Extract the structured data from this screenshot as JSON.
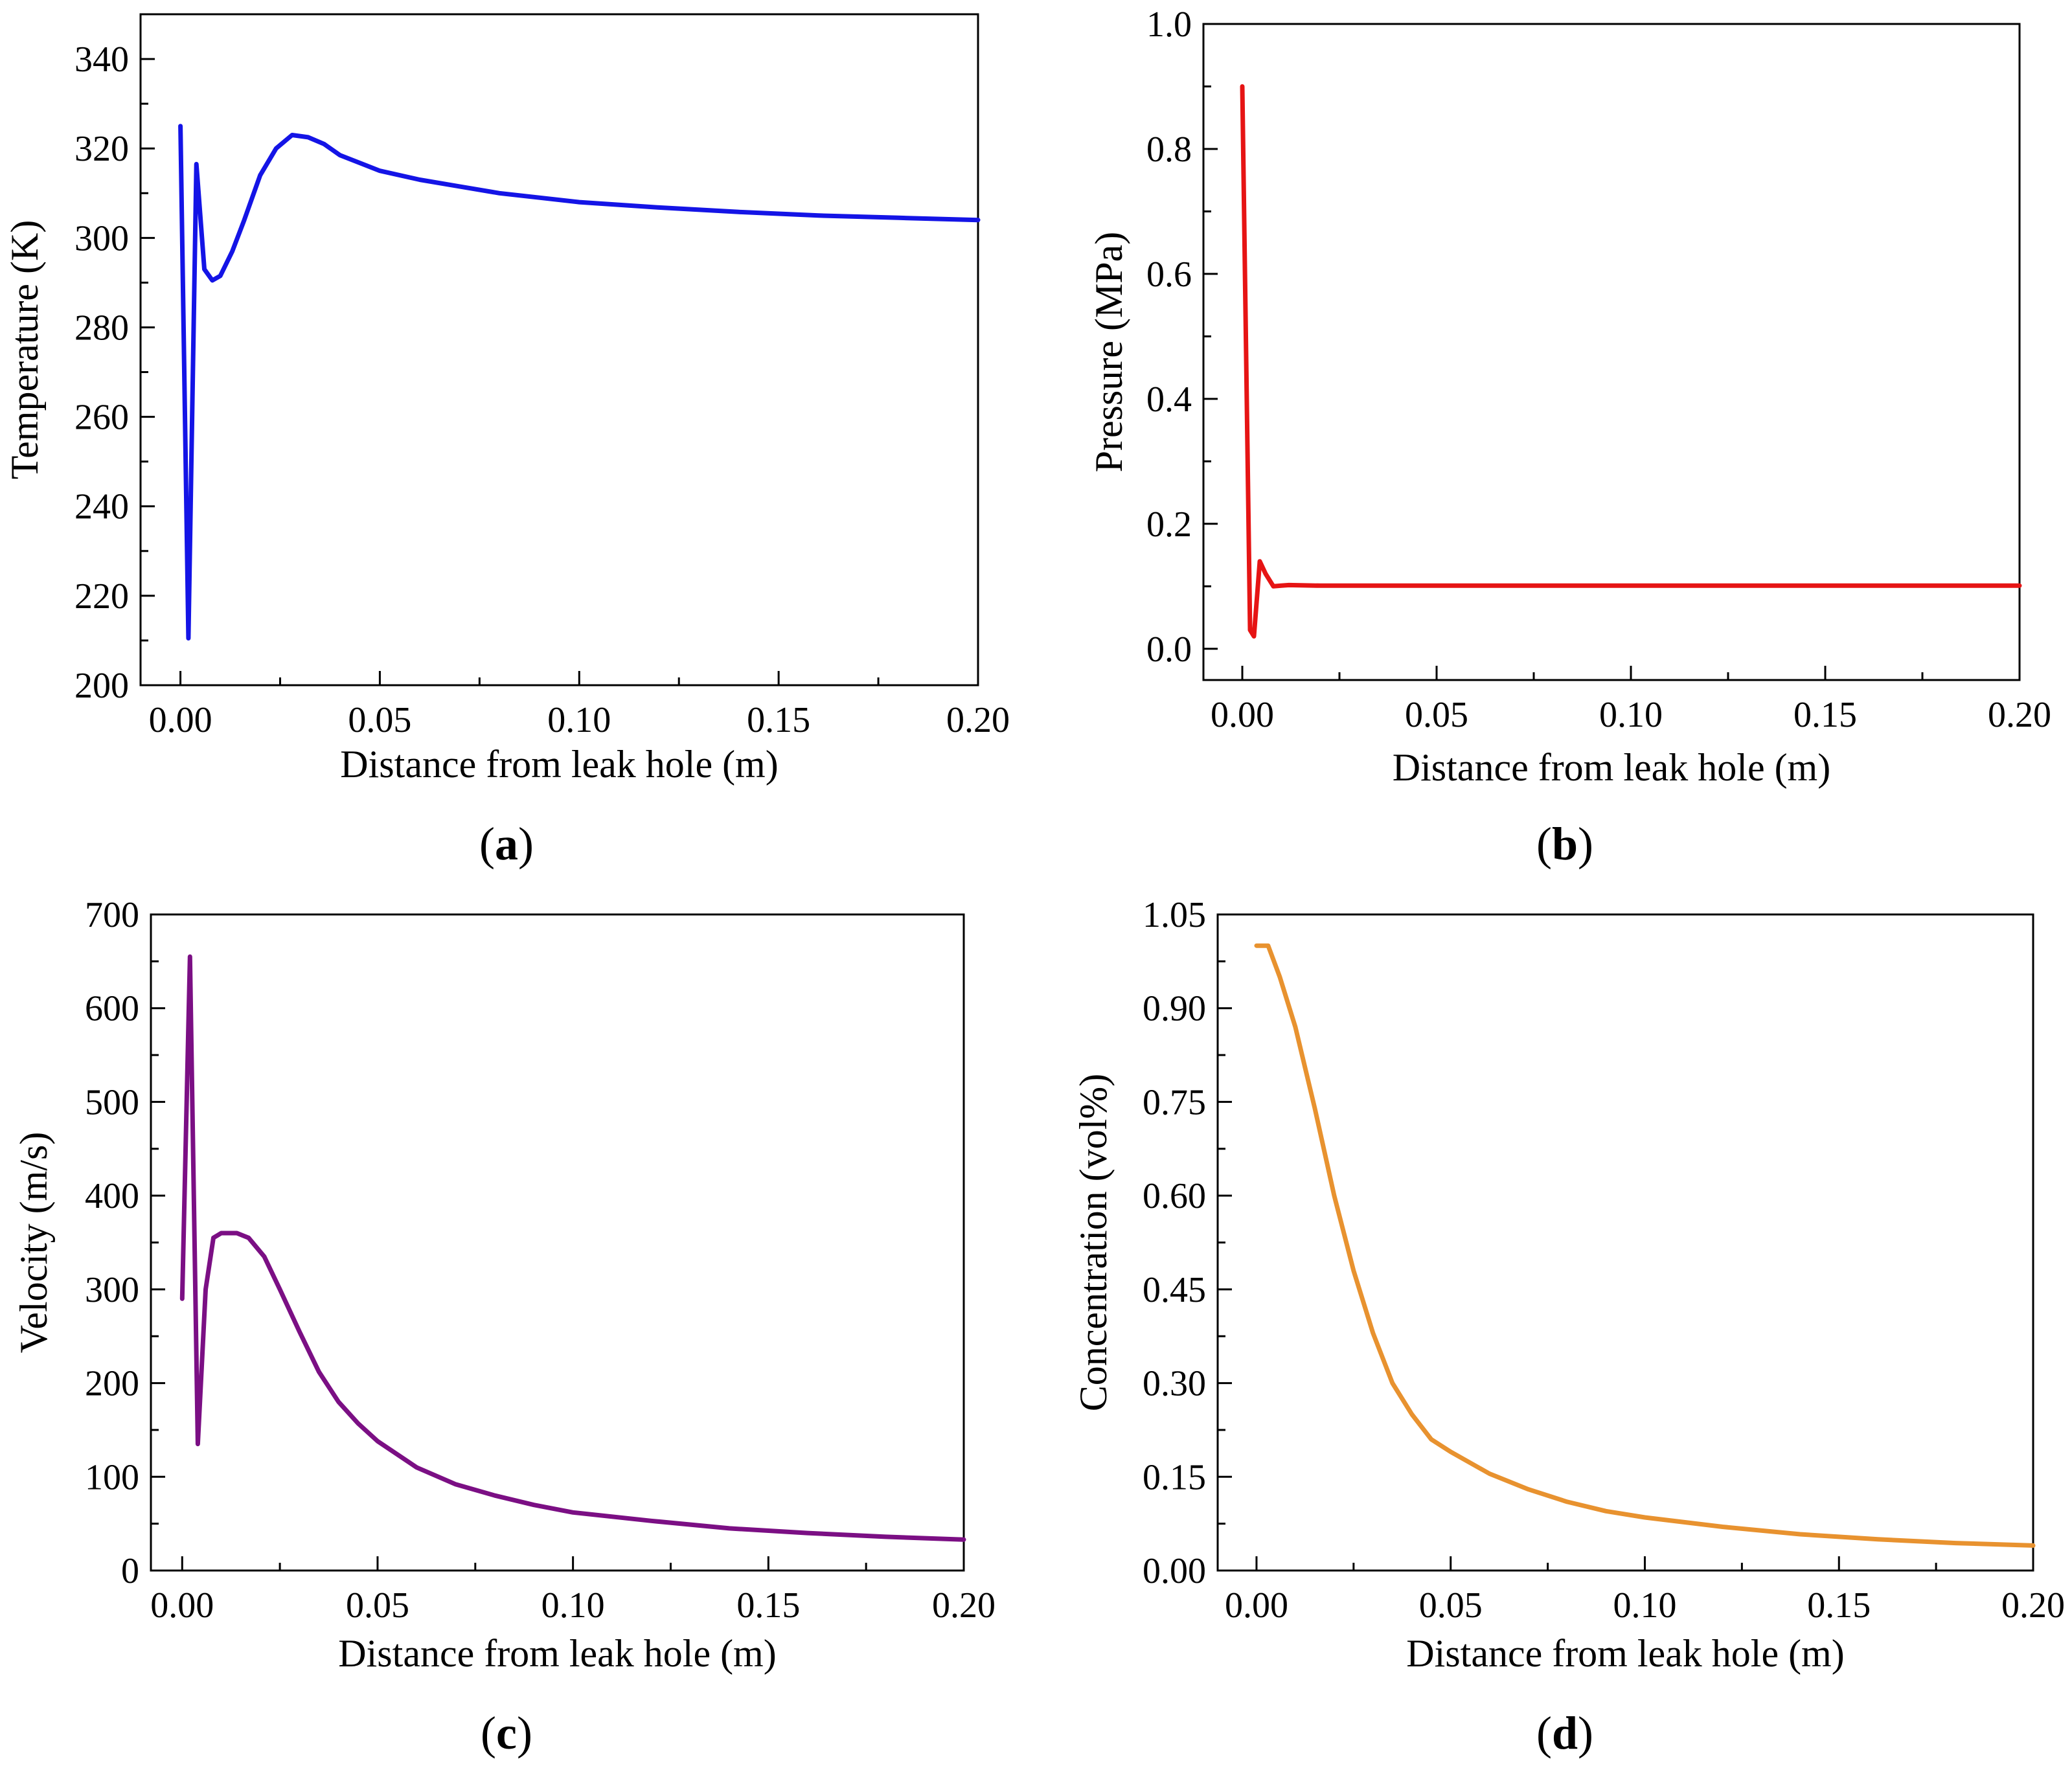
{
  "figure": {
    "panel_labels": [
      {
        "open": "(",
        "letter": "a",
        "close": ")"
      },
      {
        "open": "(",
        "letter": "b",
        "close": ")"
      },
      {
        "open": "(",
        "letter": "c",
        "close": ")"
      },
      {
        "open": "(",
        "letter": "d",
        "close": ")"
      }
    ]
  },
  "chart_data": [
    {
      "type": "line",
      "panel": "a",
      "xlabel": "Distance from leak hole (m)",
      "ylabel": "Temperature (K)",
      "xlim": [
        -0.01,
        0.2
      ],
      "ylim": [
        200,
        350
      ],
      "xticks": [
        0.0,
        0.05,
        0.1,
        0.15,
        0.2
      ],
      "xtick_labels": [
        "0.00",
        "0.05",
        "0.10",
        "0.15",
        "0.20"
      ],
      "yticks": [
        200,
        220,
        240,
        260,
        280,
        300,
        320,
        340
      ],
      "ytick_labels": [
        "200",
        "220",
        "240",
        "260",
        "280",
        "300",
        "320",
        "340"
      ],
      "color": "#1414e6",
      "series": [
        {
          "name": "Temperature",
          "x": [
            0.0,
            0.002,
            0.004,
            0.006,
            0.008,
            0.01,
            0.013,
            0.016,
            0.02,
            0.024,
            0.028,
            0.032,
            0.036,
            0.04,
            0.05,
            0.06,
            0.07,
            0.08,
            0.09,
            0.1,
            0.12,
            0.14,
            0.16,
            0.18,
            0.2
          ],
          "y": [
            325,
            210.5,
            316.5,
            293,
            290.5,
            291.5,
            297,
            304,
            314,
            320,
            323,
            322.5,
            321,
            318.5,
            315,
            313,
            311.5,
            310,
            309,
            308,
            306.8,
            305.8,
            305,
            304.5,
            304
          ]
        }
      ]
    },
    {
      "type": "line",
      "panel": "b",
      "xlabel": "Distance from leak hole (m)",
      "ylabel": "Pressure (MPa)",
      "xlim": [
        -0.01,
        0.2
      ],
      "ylim": [
        -0.05,
        1.0
      ],
      "xticks": [
        0.0,
        0.05,
        0.1,
        0.15,
        0.2
      ],
      "xtick_labels": [
        "0.00",
        "0.05",
        "0.10",
        "0.15",
        "0.20"
      ],
      "yticks": [
        0.0,
        0.2,
        0.4,
        0.6,
        0.8,
        1.0
      ],
      "ytick_labels": [
        "0.0",
        "0.2",
        "0.4",
        "0.6",
        "0.8",
        "1.0"
      ],
      "color": "#e61414",
      "series": [
        {
          "name": "Pressure",
          "x": [
            0.0,
            0.002,
            0.003,
            0.0045,
            0.006,
            0.008,
            0.01,
            0.012,
            0.02,
            0.05,
            0.1,
            0.15,
            0.2
          ],
          "y": [
            0.9,
            0.03,
            0.02,
            0.14,
            0.12,
            0.1,
            0.101,
            0.102,
            0.101,
            0.101,
            0.101,
            0.101,
            0.101
          ]
        }
      ]
    },
    {
      "type": "line",
      "panel": "c",
      "xlabel": "Distance from leak hole (m)",
      "ylabel": "Velocity (m/s)",
      "xlim": [
        -0.008,
        0.2
      ],
      "ylim": [
        0,
        700
      ],
      "xticks": [
        0.0,
        0.05,
        0.1,
        0.15,
        0.2
      ],
      "xtick_labels": [
        "0.00",
        "0.05",
        "0.10",
        "0.15",
        "0.20"
      ],
      "yticks": [
        0,
        100,
        200,
        300,
        400,
        500,
        600,
        700
      ],
      "ytick_labels": [
        "0",
        "100",
        "200",
        "300",
        "400",
        "500",
        "600",
        "700"
      ],
      "color": "#7b0f84",
      "series": [
        {
          "name": "Velocity",
          "x": [
            0.0,
            0.002,
            0.004,
            0.006,
            0.008,
            0.01,
            0.014,
            0.017,
            0.021,
            0.025,
            0.03,
            0.035,
            0.04,
            0.045,
            0.05,
            0.06,
            0.07,
            0.08,
            0.09,
            0.1,
            0.12,
            0.14,
            0.16,
            0.18,
            0.2
          ],
          "y": [
            290,
            655,
            135,
            300,
            355,
            360,
            360,
            355,
            335,
            300,
            255,
            212,
            180,
            157,
            138,
            110,
            92,
            80,
            70,
            62,
            53,
            45,
            40,
            36,
            33
          ]
        }
      ]
    },
    {
      "type": "line",
      "panel": "d",
      "xlabel": "Distance from leak hole (m)",
      "ylabel": "Concentration (vol%)",
      "xlim": [
        -0.01,
        0.2
      ],
      "ylim": [
        0,
        1.05
      ],
      "xticks": [
        0.0,
        0.05,
        0.1,
        0.15,
        0.2
      ],
      "xtick_labels": [
        "0.00",
        "0.05",
        "0.10",
        "0.15",
        "0.20"
      ],
      "yticks": [
        0.0,
        0.15,
        0.3,
        0.45,
        0.6,
        0.75,
        0.9,
        1.05
      ],
      "ytick_labels": [
        "0.00",
        "0.15",
        "0.30",
        "0.45",
        "0.60",
        "0.75",
        "0.90",
        "1.05"
      ],
      "color": "#e8922f",
      "series": [
        {
          "name": "Concentration",
          "x": [
            0.0,
            0.003,
            0.006,
            0.01,
            0.015,
            0.02,
            0.025,
            0.03,
            0.035,
            0.04,
            0.045,
            0.05,
            0.06,
            0.07,
            0.08,
            0.09,
            0.1,
            0.12,
            0.14,
            0.16,
            0.18,
            0.2
          ],
          "y": [
            1.0,
            1.0,
            0.95,
            0.87,
            0.74,
            0.6,
            0.48,
            0.38,
            0.3,
            0.25,
            0.21,
            0.19,
            0.155,
            0.13,
            0.11,
            0.095,
            0.085,
            0.07,
            0.058,
            0.05,
            0.044,
            0.04
          ]
        }
      ]
    }
  ]
}
